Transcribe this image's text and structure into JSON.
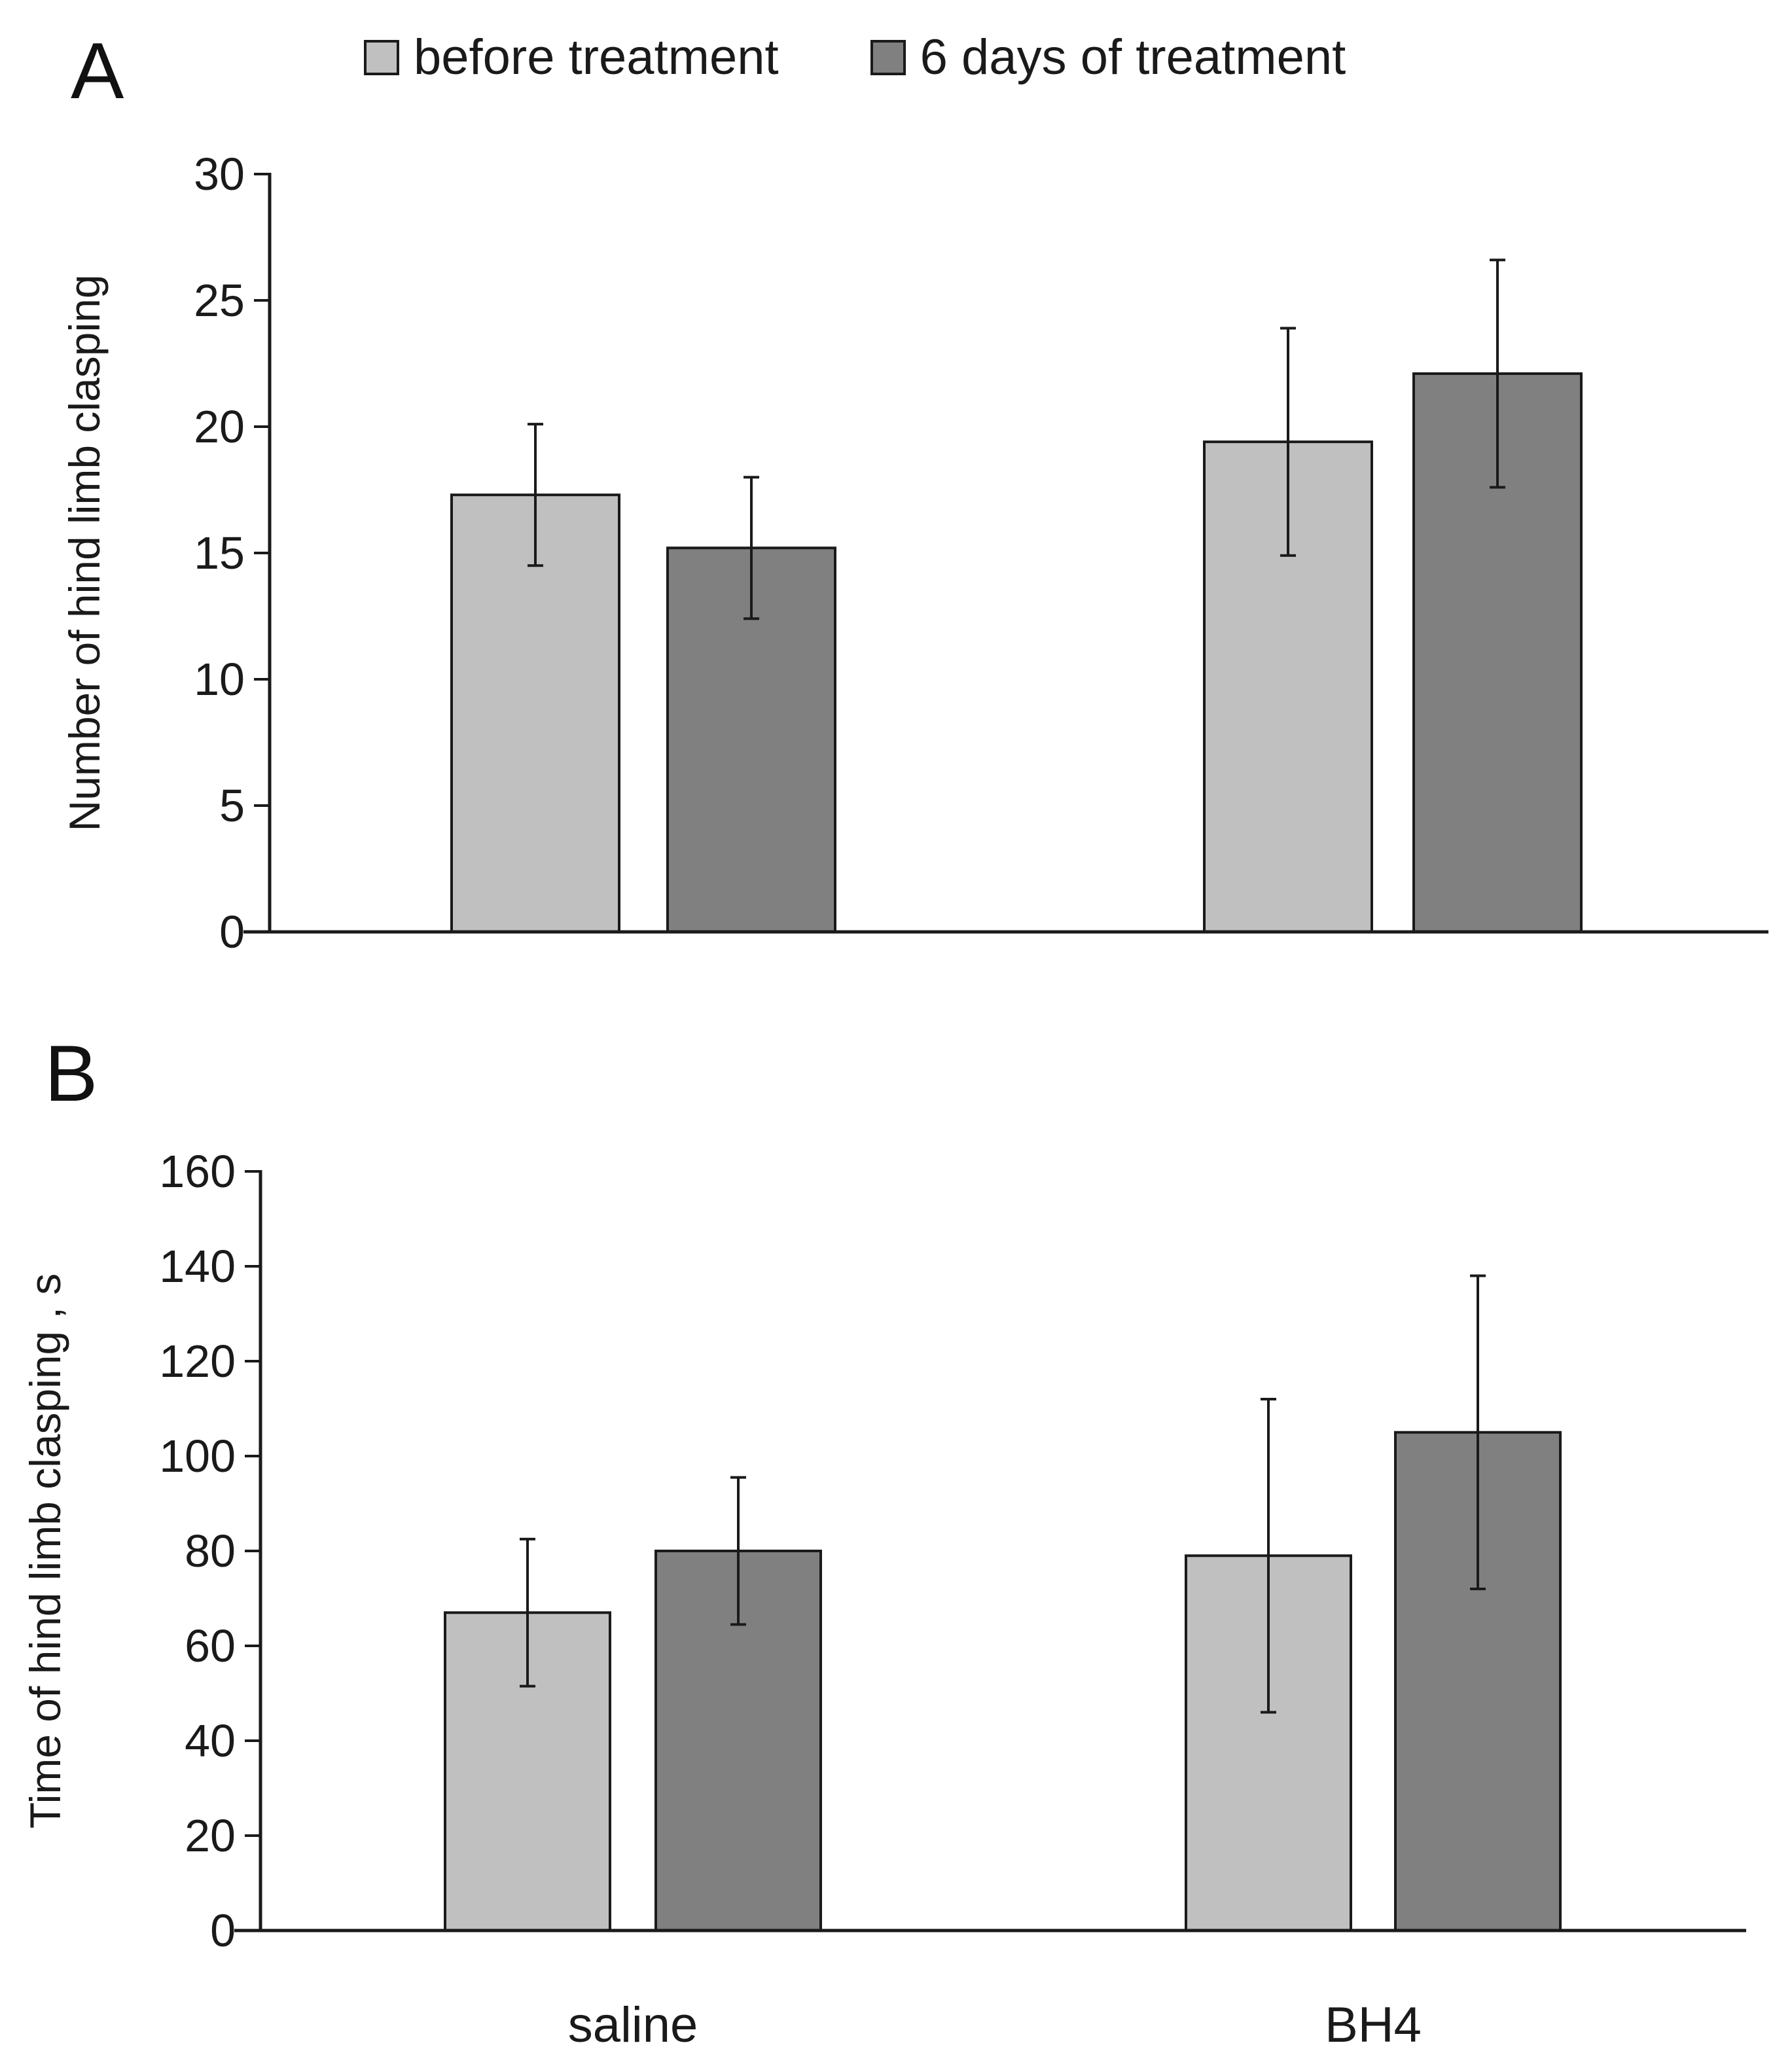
{
  "legend": {
    "before_label": "before treatment",
    "after_label": "6 days of treatment"
  },
  "colors": {
    "before": "#c0c0c0",
    "after": "#808080",
    "axis": "#1a1a1a"
  },
  "chart_data": [
    {
      "type": "bar",
      "panel_label": "A",
      "title": "",
      "xlabel": "",
      "ylabel": "Number of hind limb clasping",
      "categories": [
        "saline",
        "BH4"
      ],
      "show_category_labels": false,
      "ylim": [
        0,
        30
      ],
      "yticks": [
        0,
        5,
        10,
        15,
        20,
        25,
        30
      ],
      "grid": false,
      "legend_position": "top",
      "series": [
        {
          "name": "before treatment",
          "values": [
            17.3,
            19.4
          ],
          "errors": [
            2.8,
            4.5
          ]
        },
        {
          "name": "6 days of treatment",
          "values": [
            15.2,
            22.1
          ],
          "errors": [
            2.8,
            4.5
          ]
        }
      ]
    },
    {
      "type": "bar",
      "panel_label": "B",
      "title": "",
      "xlabel": "",
      "ylabel": "Time of hind limb clasping , s",
      "categories": [
        "saline",
        "BH4"
      ],
      "show_category_labels": true,
      "ylim": [
        0,
        160
      ],
      "yticks": [
        0,
        20,
        40,
        60,
        80,
        100,
        120,
        140,
        160
      ],
      "grid": false,
      "legend_position": "top",
      "series": [
        {
          "name": "before treatment",
          "values": [
            67,
            79
          ],
          "errors": [
            15.5,
            33
          ]
        },
        {
          "name": "6 days of treatment",
          "values": [
            80,
            105
          ],
          "errors": [
            15.5,
            33
          ]
        }
      ]
    }
  ]
}
